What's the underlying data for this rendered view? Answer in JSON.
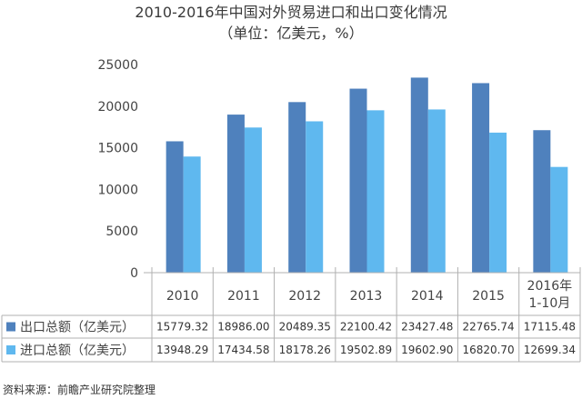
{
  "chart_data": {
    "type": "bar",
    "title": "2010-2016年中国对外贸易进口和出口变化情况",
    "subtitle": "（单位：亿美元，%）",
    "categories": [
      "2010",
      "2011",
      "2012",
      "2013",
      "2014",
      "2015",
      "2016年\n1-10月"
    ],
    "series": [
      {
        "name": "出口总额（亿美元）",
        "color": "#4f81bd",
        "values": [
          15779.32,
          18986.0,
          20489.35,
          22100.42,
          23427.48,
          22765.74,
          17115.48
        ],
        "labels": [
          "15779.32",
          "18986.00",
          "20489.35",
          "22100.42",
          "23427.48",
          "22765.74",
          "17115.48"
        ]
      },
      {
        "name": "进口总额（亿美元）",
        "color": "#5fb8ef",
        "values": [
          13948.29,
          17434.58,
          18178.26,
          19502.89,
          19602.9,
          16820.7,
          12699.34
        ],
        "labels": [
          "13948.29",
          "17434.58",
          "18178.26",
          "19502.89",
          "19602.90",
          "16820.70",
          "12699.34"
        ]
      }
    ],
    "ylim": [
      0,
      25000
    ],
    "yticks": [
      0,
      5000,
      10000,
      15000,
      20000,
      25000
    ],
    "grid": false,
    "legend": "data-table-bottom"
  },
  "source": "资料来源：前瞻产业研究院整理"
}
